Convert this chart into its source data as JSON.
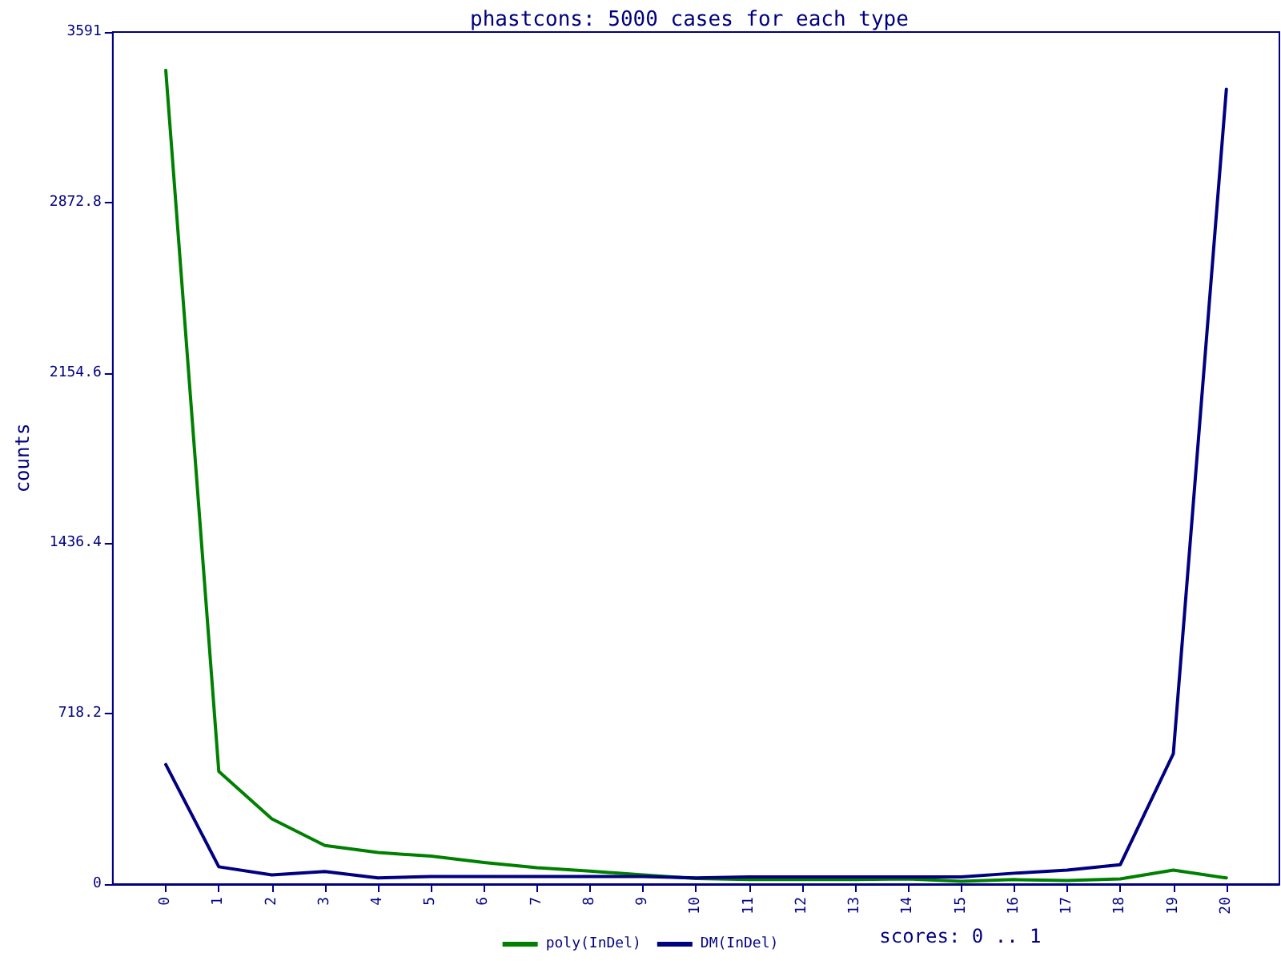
{
  "chart_data": {
    "type": "line",
    "title": "phastcons: 5000 cases for each type",
    "xlabel": "scores: 0 .. 1",
    "ylabel": "counts",
    "x": [
      0,
      1,
      2,
      3,
      4,
      5,
      6,
      7,
      8,
      9,
      10,
      11,
      12,
      13,
      14,
      15,
      16,
      17,
      18,
      19,
      20
    ],
    "series": [
      {
        "name": "poly(InDel)",
        "color": "#008000",
        "values": [
          3430,
          475,
          275,
          163,
          133,
          118,
          91,
          69,
          55,
          39,
          24,
          19,
          19,
          19,
          22,
          12,
          19,
          15,
          22,
          59,
          26
        ]
      },
      {
        "name": "DM(InDel)",
        "color": "#000080",
        "values": [
          504,
          73,
          39,
          53,
          26,
          32,
          32,
          32,
          32,
          32,
          26,
          30,
          30,
          30,
          30,
          30,
          46,
          59,
          82,
          550,
          3350
        ]
      }
    ],
    "xlim": [
      -1,
      21
    ],
    "xticks": [
      0,
      1,
      2,
      3,
      4,
      5,
      6,
      7,
      8,
      9,
      10,
      11,
      12,
      13,
      14,
      15,
      16,
      17,
      18,
      19,
      20
    ],
    "ylim": [
      0,
      3591
    ],
    "yticks": [
      0,
      718.2,
      1436.4,
      2154.6,
      2872.8,
      3591
    ],
    "grid": false,
    "legend": "bottom",
    "marker": "none",
    "line_style": "solid"
  }
}
